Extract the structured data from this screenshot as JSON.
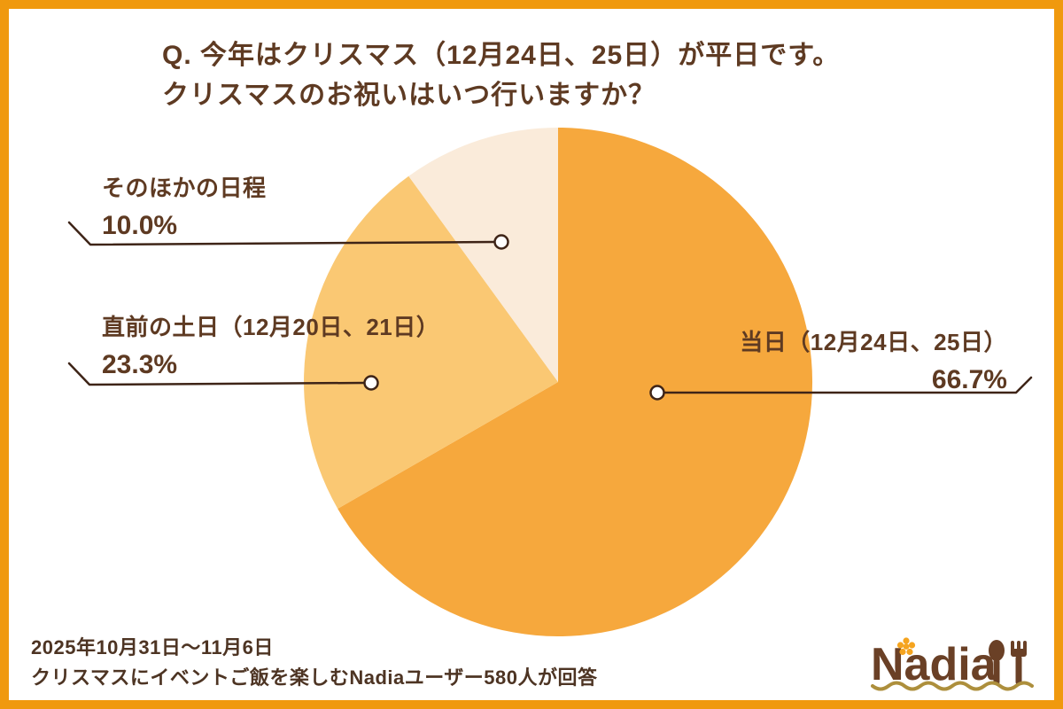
{
  "page": {
    "bg_color": "#ffffff",
    "frame_color": "#f0990e"
  },
  "title": {
    "line1": "Q. 今年はクリスマス（12月24日、25日）が平日です。",
    "line2": "クリスマスのお祝いはいつ行いますか？"
  },
  "chart_data": {
    "type": "pie",
    "title": "今年はクリスマス（12月24日、25日）が平日です。クリスマスのお祝いはいつ行いますか？",
    "labels": [
      "当日（12月24日、25日）",
      "直前の土日（12月20日、21日）",
      "そのほかの日程"
    ],
    "values": [
      66.7,
      23.3,
      10.0
    ],
    "value_labels": [
      "66.7%",
      "23.3%",
      "10.0%"
    ],
    "unit": "%",
    "colors": [
      "#f6a83d",
      "#fac873",
      "#faebda"
    ],
    "start_angle": "12-oclock",
    "direction": "clockwise",
    "legend_position": "callout-labels"
  },
  "footer": {
    "survey_period": "2025年10月31日〜11月6日",
    "respondents": "クリスマスにイベントご飯を楽しむNadiaユーザー580人が回答"
  },
  "logo": {
    "text": "Nadia"
  },
  "colors": {
    "title_text": "#5e3a22",
    "footer_text": "#4d3423",
    "callout_line": "#3e2417",
    "logo_brown": "#6a4026",
    "logo_flower": "#f5a41f",
    "logo_underline": "#ad8f3c"
  }
}
